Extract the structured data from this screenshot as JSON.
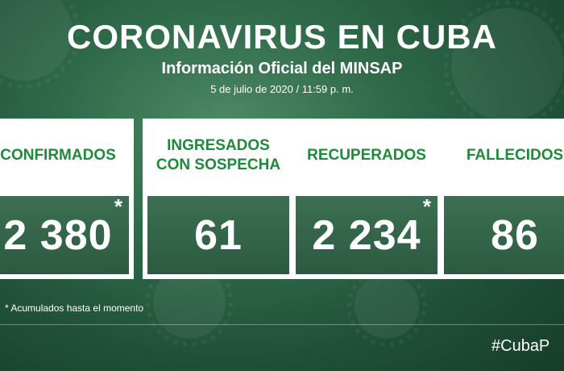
{
  "header": {
    "title": "CORONAVIRUS EN CUBA",
    "subtitle": "Información Oficial del MINSAP",
    "date": "5 de julio de 2020 / 11:59 p. m."
  },
  "cards": [
    {
      "label": "CONFIRMADOS",
      "value": "2 380",
      "asterisk": "*"
    },
    {
      "label": "INGRESADOS\nCON SOSPECHA",
      "value": "61",
      "asterisk": ""
    },
    {
      "label": "RECUPERADOS",
      "value": "2 234",
      "asterisk": "*"
    },
    {
      "label": "FALLECIDOS",
      "value": "86",
      "asterisk": "*"
    }
  ],
  "footnote": "* Acumulados hasta el momento",
  "hashtag": "#CubaP",
  "colors": {
    "accent_green": "#1f8a3a",
    "background": "#2f6a4a"
  }
}
